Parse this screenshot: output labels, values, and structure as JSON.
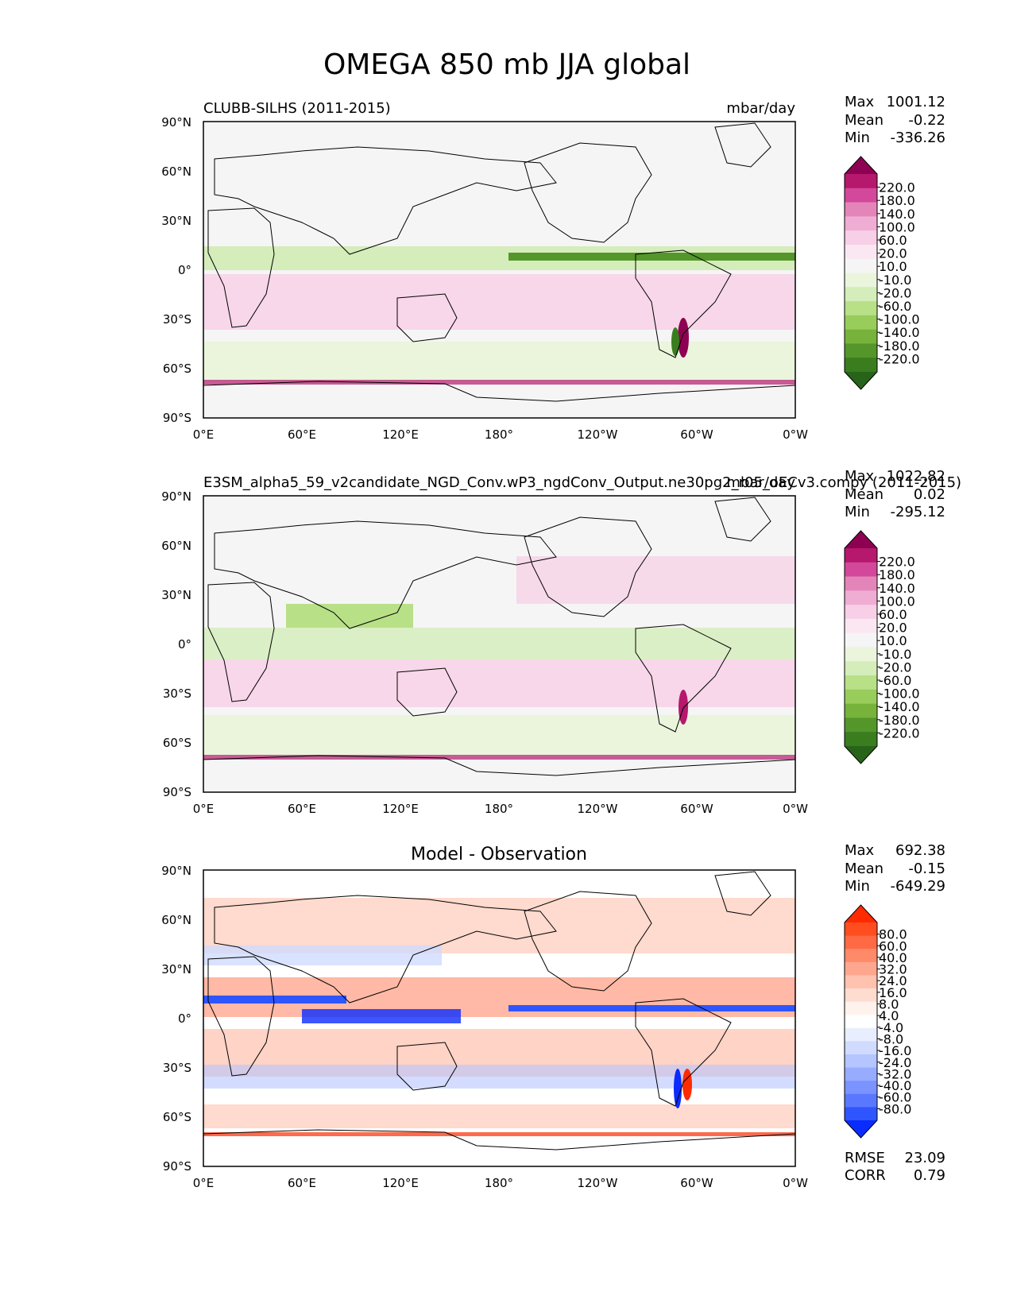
{
  "figure": {
    "title": "OMEGA 850 mb JJA global"
  },
  "axes": {
    "lat_ticks": [
      "90°N",
      "60°N",
      "30°N",
      "0°",
      "30°S",
      "60°S",
      "90°S"
    ],
    "lon_ticks": [
      "0°E",
      "60°E",
      "120°E",
      "180°",
      "120°W",
      "60°W",
      "0°W"
    ]
  },
  "colors": {
    "seq_levels_pink_green": [
      "#8e0152",
      "#b5186c",
      "#d3489b",
      "#e385b9",
      "#efadd3",
      "#f7cfe6",
      "#fbe7f2",
      "#f5f5f5",
      "#eaf5dc",
      "#d4edba",
      "#b8e087",
      "#98cc5b",
      "#77b33b",
      "#54962a",
      "#3a7d1f",
      "#276419"
    ],
    "diff_levels": [
      "#ff2a00",
      "#ff4d1f",
      "#ff6a44",
      "#ff8a6a",
      "#ffa78e",
      "#ffc2ae",
      "#ffdcd0",
      "#fff2ec",
      "#ffffff",
      "#e9eeff",
      "#d0dbff",
      "#b5c5ff",
      "#97acff",
      "#7a93ff",
      "#5a78ff",
      "#2f55ff",
      "#0a2cff"
    ]
  },
  "chart_data": [
    {
      "type": "heatmap",
      "name": "test",
      "left_label": "CLUBB-SILHS (2011-2015)",
      "right_label": "mbar/day",
      "stats": {
        "max_label": "Max",
        "max": "1001.12",
        "mean_label": "Mean",
        "mean": "-0.22",
        "min_label": "Min",
        "min": "-336.26"
      },
      "colorbar_labels": [
        "220.0",
        "180.0",
        "140.0",
        "100.0",
        "60.0",
        "20.0",
        "10.0",
        "-10.0",
        "-20.0",
        "-60.0",
        "-100.0",
        "-140.0",
        "-180.0",
        "-220.0"
      ],
      "x_range": [
        0,
        360
      ],
      "y_range": [
        -90,
        90
      ]
    },
    {
      "type": "heatmap",
      "name": "reference",
      "left_label": "E3SM_alpha5_59_v2candidate_NGD_Conv.wP3_ngdConv_Output.ne30pg2_r05_oECv3.compy (2011-2015)",
      "right_label": "mbar/day",
      "stats": {
        "max_label": "Max",
        "max": "1022.82",
        "mean_label": "Mean",
        "mean": "0.02",
        "min_label": "Min",
        "min": "-295.12"
      },
      "colorbar_labels": [
        "220.0",
        "180.0",
        "140.0",
        "100.0",
        "60.0",
        "20.0",
        "10.0",
        "-10.0",
        "-20.0",
        "-60.0",
        "-100.0",
        "-140.0",
        "-180.0",
        "-220.0"
      ],
      "x_range": [
        0,
        360
      ],
      "y_range": [
        -90,
        90
      ]
    },
    {
      "type": "heatmap",
      "name": "difference",
      "center_title": "Model - Observation",
      "stats": {
        "max_label": "Max",
        "max": "692.38",
        "mean_label": "Mean",
        "mean": "-0.15",
        "min_label": "Min",
        "min": "-649.29"
      },
      "colorbar_labels": [
        "80.0",
        "60.0",
        "40.0",
        "32.0",
        "24.0",
        "16.0",
        "8.0",
        "4.0",
        "-4.0",
        "-8.0",
        "-16.0",
        "-24.0",
        "-32.0",
        "-40.0",
        "-60.0",
        "-80.0"
      ],
      "rmse_label": "RMSE",
      "rmse": "23.09",
      "corr_label": "CORR",
      "corr": "0.79",
      "x_range": [
        0,
        360
      ],
      "y_range": [
        -90,
        90
      ]
    }
  ]
}
